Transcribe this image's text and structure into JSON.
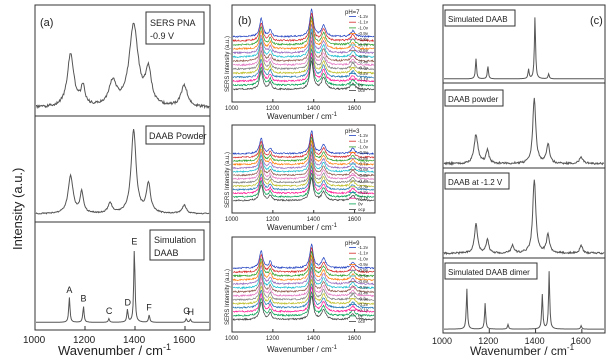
{
  "panel_a": {
    "label": "(a)",
    "ylabel": "Intensity (a.u.)",
    "xlabel": "Wavenumber / cm",
    "xlabel_sup": "-1",
    "xticks": [
      1000,
      1200,
      1400,
      1600
    ],
    "xlim": [
      1000,
      1700
    ],
    "subplots": [
      {
        "legend_lines": [
          "SERS PNA",
          "-0.9 V"
        ]
      },
      {
        "legend_lines": [
          "DAAB Powder"
        ]
      },
      {
        "legend_lines": [
          "Simulation",
          "DAAB"
        ]
      }
    ]
  },
  "panel_b": {
    "label": "(b)",
    "ylabel": "SERS Intensity (a.u.)",
    "xlabel": "Wavenumber / cm",
    "xlabel_sup": "-1",
    "xticks_top": [
      1000,
      1200,
      1400,
      1600
    ],
    "xticks": [
      1000,
      1200,
      1400,
      1600
    ],
    "xlim": [
      1000,
      1700
    ],
    "subplots": [
      {
        "ph": "pH=7",
        "legend": [
          "-1.2v",
          "-1.1v",
          "-1.0v",
          "-0.9v",
          "-0.8v",
          "-0.7v",
          "-0.6v",
          "-0.5v",
          "-0.4v",
          "-0.3v",
          "-0.2v",
          "-0.1v",
          "0v",
          "ocv"
        ]
      },
      {
        "ph": "pH=3",
        "legend": [
          "-1.2v",
          "-1.1v",
          "-1.0v",
          "-0.9v",
          "-0.8v",
          "-0.7v",
          "-0.6v",
          "-0.5v",
          "-0.4v",
          "-0.3v",
          "-0.2v",
          "-0.1v",
          "0v",
          "ocp"
        ]
      },
      {
        "ph": "pH=9",
        "legend": [
          "-1.2v",
          "-1.1v",
          "-1.0v",
          "-0.9v",
          "-0.8v",
          "-0.7v",
          "-0.6v",
          "-0.5v",
          "-0.4v",
          "-0.3v",
          "-0.2v",
          "-0.1v",
          "0v",
          "ocv"
        ]
      }
    ]
  },
  "panel_c": {
    "label": "(c)",
    "xlabel": "Wavenumber / cm",
    "xlabel_sup": "-1",
    "xticks": [
      1000,
      1200,
      1400,
      1600
    ],
    "xlim": [
      1000,
      1700
    ],
    "subplots": [
      {
        "legend": "Simulated DAAB"
      },
      {
        "legend": "DAAB powder"
      },
      {
        "legend": "DAAB at -1.2 V"
      },
      {
        "legend": "Simulated DAAB dimer"
      }
    ]
  },
  "colors": {
    "axis": "#333333",
    "spectrum": "#555555",
    "series": [
      "#1f3fbf",
      "#d62728",
      "#2ca02c",
      "#ff7f0e",
      "#9467bd",
      "#17becf",
      "#8c564b",
      "#e377c2",
      "#7f7f7f",
      "#bcbd22",
      "#1f77b4",
      "#ff1493",
      "#00a050",
      "#404040"
    ]
  },
  "chart_data": [
    {
      "type": "line",
      "title": "(a) SERS PNA -0.9 V",
      "x_range": [
        1000,
        1700
      ],
      "peaks": [
        {
          "x": 1140,
          "h": 0.62,
          "w": 16
        },
        {
          "x": 1190,
          "h": 0.22,
          "w": 10
        },
        {
          "x": 1310,
          "h": 0.28,
          "w": 18
        },
        {
          "x": 1395,
          "h": 0.95,
          "w": 22
        },
        {
          "x": 1455,
          "h": 0.4,
          "w": 14
        },
        {
          "x": 1600,
          "h": 0.25,
          "w": 16
        }
      ]
    },
    {
      "type": "line",
      "title": "(a) DAAB Powder",
      "x_range": [
        1000,
        1700
      ],
      "peaks": [
        {
          "x": 1140,
          "h": 0.45,
          "w": 12
        },
        {
          "x": 1185,
          "h": 0.25,
          "w": 8
        },
        {
          "x": 1300,
          "h": 0.12,
          "w": 10
        },
        {
          "x": 1395,
          "h": 1.0,
          "w": 12
        },
        {
          "x": 1455,
          "h": 0.35,
          "w": 10
        },
        {
          "x": 1600,
          "h": 0.1,
          "w": 10
        }
      ]
    },
    {
      "type": "line",
      "title": "(a) Simulation DAAB",
      "x_range": [
        1000,
        1700
      ],
      "peaks": [
        {
          "x": 1135,
          "h": 0.34,
          "w": 3,
          "label": "A"
        },
        {
          "x": 1192,
          "h": 0.22,
          "w": 3,
          "label": "B"
        },
        {
          "x": 1295,
          "h": 0.05,
          "w": 3,
          "label": "C"
        },
        {
          "x": 1370,
          "h": 0.17,
          "w": 3,
          "label": "D"
        },
        {
          "x": 1398,
          "h": 1.0,
          "w": 3,
          "label": "E"
        },
        {
          "x": 1458,
          "h": 0.1,
          "w": 3,
          "label": "F"
        },
        {
          "x": 1608,
          "h": 0.05,
          "w": 3,
          "label": "G"
        },
        {
          "x": 1625,
          "h": 0.04,
          "w": 3,
          "label": "H"
        }
      ]
    },
    {
      "type": "line",
      "title": "(b) pH=7",
      "x_range": [
        1000,
        1700
      ],
      "peaks": [
        {
          "x": 1140,
          "h": 0.55,
          "w": 10
        },
        {
          "x": 1185,
          "h": 0.2,
          "w": 8
        },
        {
          "x": 1390,
          "h": 0.85,
          "w": 10
        },
        {
          "x": 1450,
          "h": 0.35,
          "w": 12
        },
        {
          "x": 1595,
          "h": 0.18,
          "w": 12
        }
      ]
    },
    {
      "type": "line",
      "title": "(b) pH=3",
      "x_range": [
        1000,
        1700
      ],
      "peaks": [
        {
          "x": 1140,
          "h": 0.55,
          "w": 10
        },
        {
          "x": 1185,
          "h": 0.18,
          "w": 8
        },
        {
          "x": 1390,
          "h": 0.8,
          "w": 10
        },
        {
          "x": 1450,
          "h": 0.3,
          "w": 12
        },
        {
          "x": 1595,
          "h": 0.18,
          "w": 12
        }
      ]
    },
    {
      "type": "line",
      "title": "(b) pH=9",
      "x_range": [
        1000,
        1700
      ],
      "peaks": [
        {
          "x": 1140,
          "h": 0.55,
          "w": 10
        },
        {
          "x": 1185,
          "h": 0.2,
          "w": 8
        },
        {
          "x": 1390,
          "h": 0.75,
          "w": 10
        },
        {
          "x": 1450,
          "h": 0.3,
          "w": 12
        },
        {
          "x": 1595,
          "h": 0.18,
          "w": 12
        }
      ]
    },
    {
      "type": "line",
      "title": "(c) Simulated DAAB",
      "x_range": [
        1000,
        1700
      ],
      "peaks": [
        {
          "x": 1140,
          "h": 0.32,
          "w": 3
        },
        {
          "x": 1192,
          "h": 0.2,
          "w": 3
        },
        {
          "x": 1370,
          "h": 0.15,
          "w": 3
        },
        {
          "x": 1398,
          "h": 1.0,
          "w": 3
        },
        {
          "x": 1458,
          "h": 0.08,
          "w": 3
        }
      ]
    },
    {
      "type": "line",
      "title": "(c) DAAB powder",
      "x_range": [
        1000,
        1700
      ],
      "peaks": [
        {
          "x": 1140,
          "h": 0.45,
          "w": 10
        },
        {
          "x": 1190,
          "h": 0.2,
          "w": 8
        },
        {
          "x": 1395,
          "h": 1.0,
          "w": 8
        },
        {
          "x": 1455,
          "h": 0.3,
          "w": 8
        },
        {
          "x": 1600,
          "h": 0.1,
          "w": 10
        }
      ]
    },
    {
      "type": "line",
      "title": "(c) DAAB at -1.2 V",
      "x_range": [
        1000,
        1700
      ],
      "peaks": [
        {
          "x": 1140,
          "h": 0.4,
          "w": 8
        },
        {
          "x": 1190,
          "h": 0.18,
          "w": 7
        },
        {
          "x": 1300,
          "h": 0.1,
          "w": 8
        },
        {
          "x": 1395,
          "h": 1.0,
          "w": 8
        },
        {
          "x": 1455,
          "h": 0.25,
          "w": 8
        },
        {
          "x": 1600,
          "h": 0.1,
          "w": 8
        }
      ]
    },
    {
      "type": "line",
      "title": "(c) Simulated DAAB dimer",
      "x_range": [
        1000,
        1700
      ],
      "peaks": [
        {
          "x": 1100,
          "h": 0.7,
          "w": 3
        },
        {
          "x": 1180,
          "h": 0.45,
          "w": 3
        },
        {
          "x": 1280,
          "h": 0.08,
          "w": 3
        },
        {
          "x": 1430,
          "h": 0.6,
          "w": 3
        },
        {
          "x": 1460,
          "h": 1.0,
          "w": 3
        },
        {
          "x": 1600,
          "h": 0.06,
          "w": 3
        }
      ]
    }
  ]
}
